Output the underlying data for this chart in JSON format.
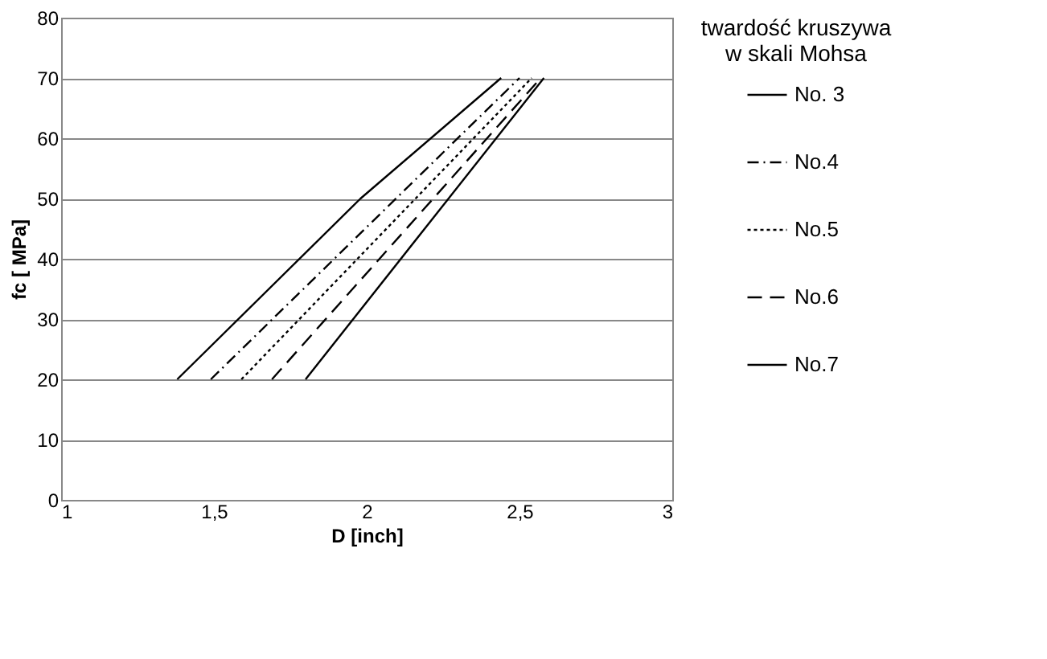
{
  "chart_data": {
    "type": "line",
    "xlabel": "D [inch]",
    "ylabel": "fc [ MPa]",
    "legend_title": "twardość kruszywa w skali Mohsa",
    "xlim": [
      1,
      3
    ],
    "xticks": [
      1,
      {
        "value": 1.5,
        "label": "1,5"
      },
      2,
      {
        "value": 2.5,
        "label": "2,5"
      },
      3
    ],
    "ylim": [
      0,
      80
    ],
    "yticks": [
      0,
      10,
      20,
      30,
      40,
      50,
      60,
      70,
      80
    ],
    "grid": "y",
    "legend": "right",
    "series": [
      {
        "name": "No. 3",
        "color": "#000000",
        "line_style": "solid",
        "x": [
          1.38,
          1.98,
          2.44
        ],
        "values": [
          20,
          50,
          70
        ]
      },
      {
        "name": "No.4",
        "color": "#000000",
        "line_style": "dashdot",
        "x": [
          1.49,
          2.5
        ],
        "values": [
          20,
          70
        ]
      },
      {
        "name": "No.5",
        "color": "#000000",
        "line_style": "dotted",
        "x": [
          1.59,
          2.54
        ],
        "values": [
          20,
          70
        ]
      },
      {
        "name": "No.6",
        "color": "#000000",
        "line_style": "dashed",
        "x": [
          1.69,
          2.57
        ],
        "values": [
          20,
          70
        ]
      },
      {
        "name": "No.7",
        "color": "#000000",
        "line_style": "solid",
        "x": [
          1.8,
          2.58
        ],
        "values": [
          20,
          70
        ]
      }
    ]
  }
}
